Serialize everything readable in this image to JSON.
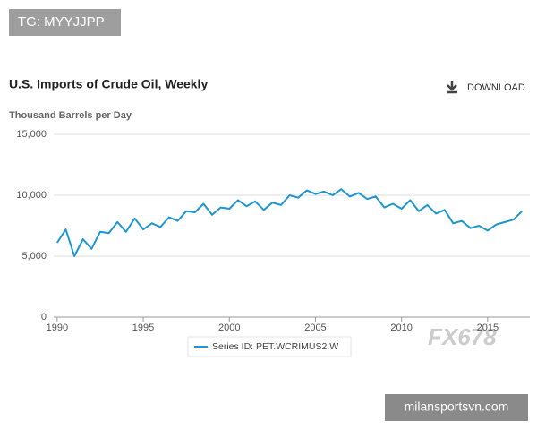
{
  "chart_data": {
    "type": "line",
    "title": "U.S. Imports of Crude Oil, Weekly",
    "download_label": "DOWNLOAD",
    "y_label": "Thousand Barrels per Day",
    "watermarks": [
      "TG: MYYJJPP",
      "FX678",
      "milansportsvn.com"
    ],
    "x": [
      1990.0,
      1990.5,
      1991.0,
      1991.5,
      1992.0,
      1992.5,
      1993.0,
      1993.5,
      1994.0,
      1994.5,
      1995.0,
      1995.5,
      1996.0,
      1996.5,
      1997.0,
      1997.5,
      1998.0,
      1998.5,
      1999.0,
      1999.5,
      2000.0,
      2000.5,
      2001.0,
      2001.5,
      2002.0,
      2002.5,
      2003.0,
      2003.5,
      2004.0,
      2004.5,
      2005.0,
      2005.5,
      2006.0,
      2006.5,
      2007.0,
      2007.5,
      2008.0,
      2008.5,
      2009.0,
      2009.5,
      2010.0,
      2010.5,
      2011.0,
      2011.5,
      2012.0,
      2012.5,
      2013.0,
      2013.5,
      2014.0,
      2014.5,
      2015.0,
      2015.5,
      2016.0,
      2016.5,
      2017.0
    ],
    "series": [
      {
        "name": "Series ID: PET.WCRIMUS2.W",
        "color": "#1f96d0",
        "values": [
          6100,
          7200,
          5000,
          6400,
          5600,
          7000,
          6900,
          7800,
          7000,
          8100,
          7200,
          7700,
          7400,
          8200,
          7900,
          8700,
          8600,
          9300,
          8400,
          9000,
          8900,
          9600,
          9100,
          9500,
          8800,
          9400,
          9200,
          10000,
          9800,
          10400,
          10100,
          10300,
          10000,
          10500,
          9900,
          10200,
          9700,
          9900,
          9000,
          9300,
          8900,
          9600,
          8700,
          9200,
          8500,
          8800,
          7700,
          7900,
          7300,
          7500,
          7100,
          7600,
          7800,
          8000,
          8700
        ]
      }
    ],
    "xlim": [
      1989.8,
      2017.45
    ],
    "xticks": [
      1990,
      1995,
      2000,
      2005,
      2010,
      2015
    ],
    "ylim": [
      0,
      15000
    ],
    "yticks": [
      0,
      {
        "value": 5000,
        "label": "5,000"
      },
      {
        "value": 10000,
        "label": "10,000"
      },
      {
        "value": 15000,
        "label": "15,000"
      }
    ],
    "grid": true
  }
}
